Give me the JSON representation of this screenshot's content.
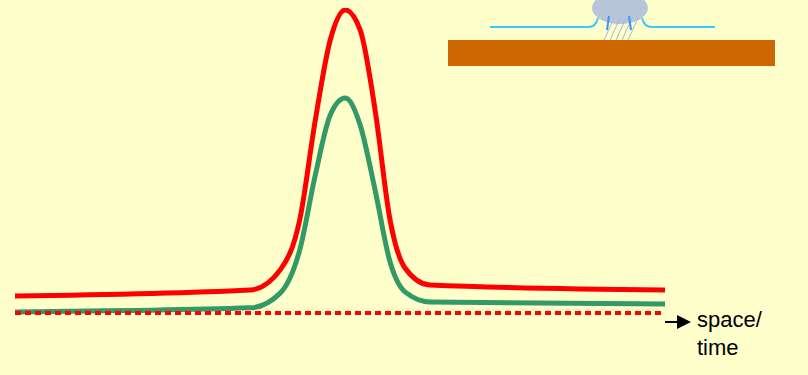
{
  "chart_data": {
    "type": "line",
    "xlabel": "space/ time",
    "x": [
      0,
      36.2,
      40.8,
      43.8,
      46.2,
      48.5,
      50.8,
      53.1,
      55.4,
      57.7,
      60,
      63.8,
      100
    ],
    "xlim": [
      0,
      100
    ],
    "ylim": [
      0,
      100
    ],
    "grid": false,
    "tick_labels": false,
    "series": [
      {
        "color": "#ff0000",
        "line_style": "solid",
        "values": [
          8.3,
          10.2,
          16.6,
          32.5,
          64.3,
          89.8,
          99.4,
          93,
          67.5,
          32.5,
          17.2,
          11.8,
          10.2
        ]
      },
      {
        "color": "#339966",
        "line_style": "solid",
        "values": [
          3.2,
          4.5,
          9.2,
          22.9,
          46.8,
          65.9,
          71.3,
          62.7,
          42,
          19.1,
          9.6,
          6.4,
          5.7
        ]
      },
      {
        "color": "#ff0000",
        "line_style": "dotted",
        "values": [
          2.9,
          2.9,
          2.9,
          2.9,
          2.9,
          2.9,
          2.9,
          2.9,
          2.9,
          2.9,
          2.9,
          2.9,
          2.9
        ]
      }
    ]
  }
}
